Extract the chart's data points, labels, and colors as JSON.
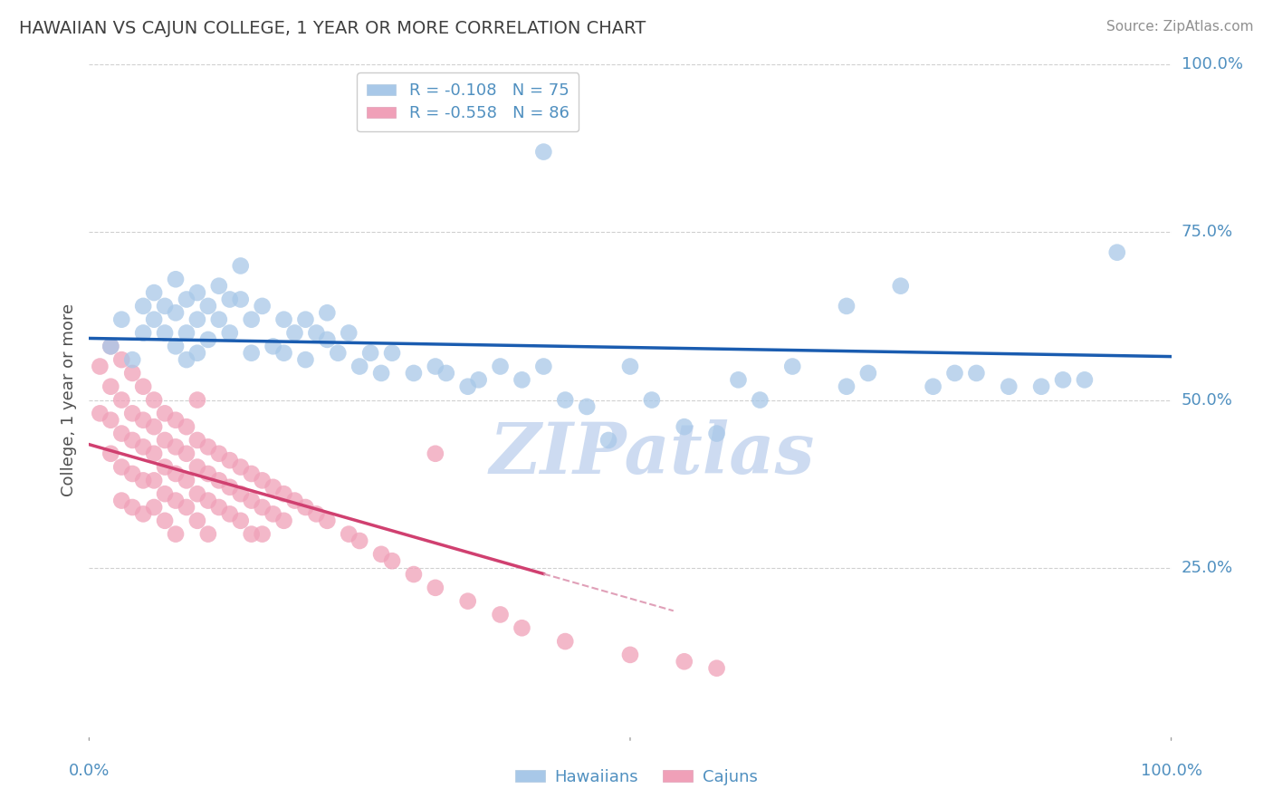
{
  "title": "HAWAIIAN VS CAJUN COLLEGE, 1 YEAR OR MORE CORRELATION CHART",
  "source": "Source: ZipAtlas.com",
  "ylabel": "College, 1 year or more",
  "xlim": [
    0.0,
    1.0
  ],
  "ylim": [
    0.0,
    1.0
  ],
  "hawaiian_R": -0.108,
  "hawaiian_N": 75,
  "cajun_R": -0.558,
  "cajun_N": 86,
  "legend_label_hawaiian": "Hawaiians",
  "legend_label_cajun": "Cajuns",
  "color_hawaiian": "#a8c8e8",
  "color_cajun": "#f0a0b8",
  "line_color_hawaiian": "#1a5cb0",
  "line_color_cajun": "#d04070",
  "line_color_cajun_dashed": "#e0a0b8",
  "background_color": "#ffffff",
  "grid_color": "#d0d0d0",
  "title_color": "#404040",
  "source_color": "#909090",
  "axis_label_color": "#5090c0",
  "watermark_color": "#c8d8f0",
  "hawaiian_x": [
    0.02,
    0.03,
    0.04,
    0.05,
    0.05,
    0.06,
    0.06,
    0.07,
    0.07,
    0.08,
    0.08,
    0.08,
    0.09,
    0.09,
    0.09,
    0.1,
    0.1,
    0.1,
    0.11,
    0.11,
    0.12,
    0.12,
    0.13,
    0.13,
    0.14,
    0.14,
    0.15,
    0.15,
    0.16,
    0.17,
    0.18,
    0.18,
    0.19,
    0.2,
    0.2,
    0.21,
    0.22,
    0.22,
    0.23,
    0.24,
    0.25,
    0.26,
    0.27,
    0.28,
    0.3,
    0.32,
    0.33,
    0.35,
    0.36,
    0.38,
    0.4,
    0.42,
    0.44,
    0.46,
    0.48,
    0.5,
    0.52,
    0.55,
    0.58,
    0.6,
    0.62,
    0.65,
    0.7,
    0.72,
    0.75,
    0.78,
    0.8,
    0.82,
    0.85,
    0.88,
    0.9,
    0.92,
    0.95,
    0.7,
    0.42
  ],
  "hawaiian_y": [
    0.58,
    0.62,
    0.56,
    0.64,
    0.6,
    0.66,
    0.62,
    0.64,
    0.6,
    0.68,
    0.63,
    0.58,
    0.65,
    0.6,
    0.56,
    0.66,
    0.62,
    0.57,
    0.64,
    0.59,
    0.67,
    0.62,
    0.65,
    0.6,
    0.7,
    0.65,
    0.62,
    0.57,
    0.64,
    0.58,
    0.62,
    0.57,
    0.6,
    0.56,
    0.62,
    0.6,
    0.59,
    0.63,
    0.57,
    0.6,
    0.55,
    0.57,
    0.54,
    0.57,
    0.54,
    0.55,
    0.54,
    0.52,
    0.53,
    0.55,
    0.53,
    0.55,
    0.5,
    0.49,
    0.44,
    0.55,
    0.5,
    0.46,
    0.45,
    0.53,
    0.5,
    0.55,
    0.52,
    0.54,
    0.67,
    0.52,
    0.54,
    0.54,
    0.52,
    0.52,
    0.53,
    0.53,
    0.72,
    0.64,
    0.87
  ],
  "cajun_x": [
    0.01,
    0.01,
    0.02,
    0.02,
    0.02,
    0.02,
    0.03,
    0.03,
    0.03,
    0.03,
    0.03,
    0.04,
    0.04,
    0.04,
    0.04,
    0.04,
    0.05,
    0.05,
    0.05,
    0.05,
    0.05,
    0.06,
    0.06,
    0.06,
    0.06,
    0.06,
    0.07,
    0.07,
    0.07,
    0.07,
    0.07,
    0.08,
    0.08,
    0.08,
    0.08,
    0.08,
    0.09,
    0.09,
    0.09,
    0.09,
    0.1,
    0.1,
    0.1,
    0.1,
    0.11,
    0.11,
    0.11,
    0.11,
    0.12,
    0.12,
    0.12,
    0.13,
    0.13,
    0.13,
    0.14,
    0.14,
    0.14,
    0.15,
    0.15,
    0.15,
    0.16,
    0.16,
    0.16,
    0.17,
    0.17,
    0.18,
    0.18,
    0.19,
    0.2,
    0.21,
    0.22,
    0.24,
    0.25,
    0.27,
    0.28,
    0.3,
    0.32,
    0.35,
    0.38,
    0.4,
    0.44,
    0.5,
    0.55,
    0.58,
    0.32,
    0.1
  ],
  "cajun_y": [
    0.55,
    0.48,
    0.58,
    0.52,
    0.47,
    0.42,
    0.56,
    0.5,
    0.45,
    0.4,
    0.35,
    0.54,
    0.48,
    0.44,
    0.39,
    0.34,
    0.52,
    0.47,
    0.43,
    0.38,
    0.33,
    0.5,
    0.46,
    0.42,
    0.38,
    0.34,
    0.48,
    0.44,
    0.4,
    0.36,
    0.32,
    0.47,
    0.43,
    0.39,
    0.35,
    0.3,
    0.46,
    0.42,
    0.38,
    0.34,
    0.44,
    0.4,
    0.36,
    0.32,
    0.43,
    0.39,
    0.35,
    0.3,
    0.42,
    0.38,
    0.34,
    0.41,
    0.37,
    0.33,
    0.4,
    0.36,
    0.32,
    0.39,
    0.35,
    0.3,
    0.38,
    0.34,
    0.3,
    0.37,
    0.33,
    0.36,
    0.32,
    0.35,
    0.34,
    0.33,
    0.32,
    0.3,
    0.29,
    0.27,
    0.26,
    0.24,
    0.22,
    0.2,
    0.18,
    0.16,
    0.14,
    0.12,
    0.11,
    0.1,
    0.42,
    0.5
  ]
}
